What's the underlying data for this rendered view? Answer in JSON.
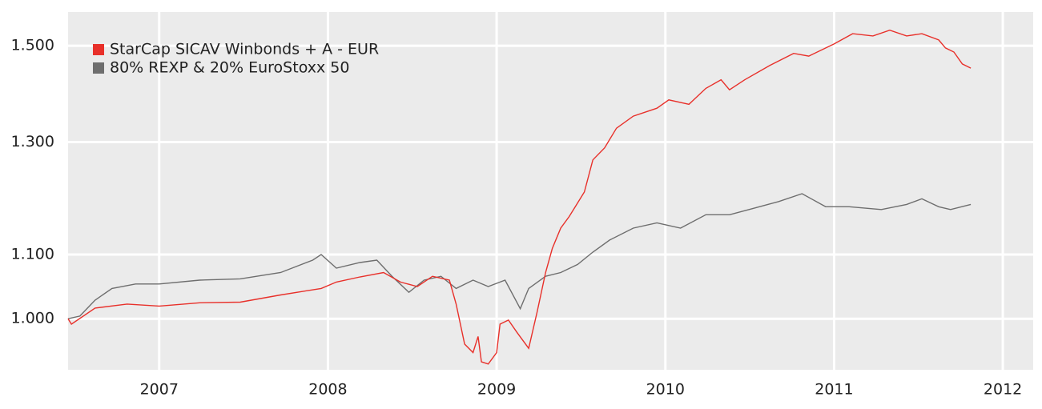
{
  "chart_data": {
    "type": "line",
    "log_y": true,
    "grid": true,
    "legend": "upper left",
    "xlim": [
      2006.46,
      2012.18
    ],
    "xticks": [
      2007,
      2008,
      2009,
      2010,
      2011,
      2012
    ],
    "ylim": [
      927,
      1577
    ],
    "yticks": [
      {
        "value": 1000,
        "label": "1.000"
      },
      {
        "value": 1100,
        "label": "1.100"
      },
      {
        "value": 1300,
        "label": "1.300"
      },
      {
        "value": 1500,
        "label": "1.500"
      }
    ],
    "series": [
      {
        "name": "StarCap SICAV Winbonds + A - EUR",
        "color": "#e8302a",
        "x": [
          2006.46,
          2006.48,
          2006.62,
          2006.81,
          2007.0,
          2007.24,
          2007.48,
          2007.72,
          2007.96,
          2008.05,
          2008.19,
          2008.33,
          2008.43,
          2008.53,
          2008.62,
          2008.72,
          2008.76,
          2008.81,
          2008.86,
          2008.89,
          2008.91,
          2008.95,
          2009.0,
          2009.02,
          2009.07,
          2009.12,
          2009.19,
          2009.24,
          2009.29,
          2009.33,
          2009.38,
          2009.43,
          2009.52,
          2009.57,
          2009.64,
          2009.71,
          2009.81,
          2009.95,
          2010.02,
          2010.14,
          2010.24,
          2010.33,
          2010.38,
          2010.47,
          2010.62,
          2010.76,
          2010.85,
          2011.0,
          2011.11,
          2011.23,
          2011.33,
          2011.43,
          2011.52,
          2011.62,
          2011.66,
          2011.71,
          2011.76,
          2011.81
        ],
        "values": [
          1000,
          992,
          1016,
          1022,
          1019,
          1024,
          1025,
          1036,
          1046,
          1056,
          1064,
          1071,
          1056,
          1049,
          1065,
          1059,
          1022,
          963,
          951,
          974,
          938,
          935,
          951,
          992,
          998,
          980,
          957,
          1010,
          1071,
          1110,
          1144,
          1164,
          1207,
          1266,
          1289,
          1327,
          1351,
          1367,
          1384,
          1375,
          1408,
          1426,
          1405,
          1426,
          1457,
          1483,
          1477,
          1504,
          1527,
          1522,
          1535,
          1522,
          1527,
          1513,
          1495,
          1486,
          1460,
          1451
        ]
      },
      {
        "name": "80% REXP & 20% EuroStoxx 50",
        "color": "#6e6e6e",
        "x": [
          2006.46,
          2006.53,
          2006.62,
          2006.72,
          2006.86,
          2007.0,
          2007.24,
          2007.48,
          2007.72,
          2007.91,
          2007.96,
          2008.05,
          2008.19,
          2008.29,
          2008.38,
          2008.48,
          2008.57,
          2008.67,
          2008.76,
          2008.86,
          2008.95,
          2009.05,
          2009.14,
          2009.19,
          2009.29,
          2009.38,
          2009.48,
          2009.57,
          2009.67,
          2009.81,
          2009.95,
          2010.09,
          2010.24,
          2010.38,
          2010.52,
          2010.67,
          2010.81,
          2010.95,
          2011.09,
          2011.28,
          2011.43,
          2011.52,
          2011.62,
          2011.69,
          2011.81
        ],
        "values": [
          1000,
          1004,
          1028,
          1046,
          1053,
          1053,
          1059,
          1061,
          1071,
          1091,
          1100,
          1078,
          1087,
          1091,
          1065,
          1040,
          1059,
          1065,
          1046,
          1059,
          1049,
          1059,
          1015,
          1046,
          1065,
          1071,
          1084,
          1104,
          1124,
          1144,
          1153,
          1144,
          1167,
          1167,
          1178,
          1190,
          1204,
          1181,
          1181,
          1176,
          1185,
          1195,
          1181,
          1176,
          1185
        ]
      }
    ]
  }
}
